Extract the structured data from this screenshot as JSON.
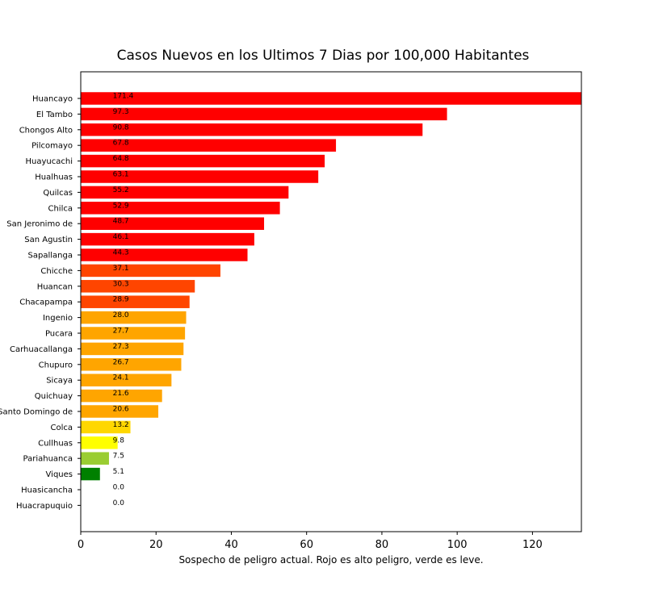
{
  "chart_data": {
    "type": "bar",
    "orientation": "horizontal",
    "title": "Casos Nuevos en los Ultimos 7 Dias por 100,000 Habitantes",
    "xlabel": "Sospecho de peligro actual. Rojo es alto peligro, verde es leve.",
    "ylabel": "",
    "xlim": [
      0,
      133
    ],
    "xticks": [
      0,
      20,
      40,
      60,
      80,
      100,
      120
    ],
    "grid": false,
    "categories": [
      "Huancayo",
      "El Tambo",
      "Chongos Alto",
      "Pilcomayo",
      "Huayucachi",
      "Hualhuas",
      "Quilcas",
      "Chilca",
      "San Jeronimo de ",
      "San Agustin",
      "Sapallanga",
      "Chicche",
      "Huancan",
      "Chacapampa",
      "Ingenio",
      "Pucara",
      "Carhuacallanga",
      "Chupuro",
      "Sicaya",
      "Quichuay",
      "Santo Domingo de ",
      "Colca",
      "Cullhuas",
      "Pariahuanca",
      "Viques",
      "Huasicancha",
      "Huacrapuquio"
    ],
    "values": [
      171.4,
      97.3,
      90.8,
      67.8,
      64.8,
      63.1,
      55.2,
      52.9,
      48.7,
      46.1,
      44.3,
      37.1,
      30.3,
      28.9,
      28.0,
      27.7,
      27.3,
      26.7,
      24.1,
      21.6,
      20.6,
      13.2,
      9.8,
      7.5,
      5.1,
      0.0,
      0.0
    ],
    "value_labels": [
      "171.4",
      "97.3",
      "90.8",
      "67.8",
      "64.8",
      "63.1",
      "55.2",
      "52.9",
      "48.7",
      "46.1",
      "44.3",
      "37.1",
      "30.3",
      "28.9",
      "28.0",
      "27.7",
      "27.3",
      "26.7",
      "24.1",
      "21.6",
      "20.6",
      "13.2",
      "9.8",
      "7.5",
      "5.1",
      "0.0",
      "0.0"
    ],
    "label_anchor_value": 8.5,
    "colors": [
      "#ff0000",
      "#ff0000",
      "#ff0000",
      "#ff0000",
      "#ff0000",
      "#ff0000",
      "#ff0000",
      "#ff0000",
      "#ff0000",
      "#ff0000",
      "#ff0000",
      "#ff4500",
      "#ff4500",
      "#ff4500",
      "#ffa500",
      "#ffa500",
      "#ffa500",
      "#ffa500",
      "#ffa500",
      "#ffa500",
      "#ffa500",
      "#ffd700",
      "#ffff00",
      "#9acd32",
      "#008000",
      "#008000",
      "#008000"
    ]
  }
}
